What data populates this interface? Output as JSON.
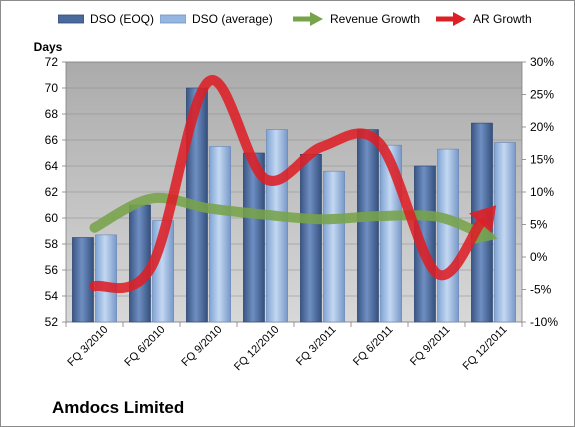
{
  "company": "Amdocs Limited",
  "legend": {
    "dso_eoq": "DSO (EOQ)",
    "dso_avg": "DSO (average)",
    "revenue_growth": "Revenue Growth",
    "ar_growth": "AR Growth"
  },
  "colors": {
    "dso_eoq": "#4a6a9c",
    "dso_avg": "#94b6e0",
    "revenue_growth": "#77a34a",
    "ar_growth": "#dd1f26",
    "plot_bg": "#c0c0c0"
  },
  "chart_data": {
    "type": "bar",
    "ylabel": "Days",
    "categories": [
      "FQ 3/2010",
      "FQ 6/2010",
      "FQ 9/2010",
      "FQ 12/2010",
      "FQ 3/2011",
      "FQ 6/2011",
      "FQ 9/2011",
      "FQ 12/2011"
    ],
    "ylim": [
      52,
      72
    ],
    "y_ticks": [
      52,
      54,
      56,
      58,
      60,
      62,
      64,
      66,
      68,
      70,
      72
    ],
    "y2lim": [
      -10,
      30
    ],
    "y2_ticks": [
      "-10%",
      "-5%",
      "0%",
      "5%",
      "10%",
      "15%",
      "20%",
      "25%",
      "30%"
    ],
    "series": [
      {
        "name": "DSO (EOQ)",
        "type": "bar",
        "axis": "left",
        "values": [
          58.5,
          61.0,
          70.0,
          65.0,
          64.9,
          66.8,
          64.0,
          67.3
        ]
      },
      {
        "name": "DSO (average)",
        "type": "bar",
        "axis": "right_none",
        "values": [
          58.7,
          59.8,
          65.5,
          66.8,
          63.6,
          65.6,
          65.3,
          65.8
        ]
      },
      {
        "name": "Revenue Growth",
        "type": "line",
        "axis": "right",
        "unit": "%",
        "values": [
          4.5,
          9.0,
          7.5,
          6.5,
          5.8,
          6.3,
          6.2,
          3.0
        ]
      },
      {
        "name": "AR Growth",
        "type": "line",
        "axis": "right",
        "unit": "%",
        "values": [
          -4.5,
          -1.5,
          27.0,
          12.0,
          17.0,
          17.5,
          -2.5,
          7.5
        ]
      }
    ],
    "grid": true,
    "legend_position": "top"
  }
}
